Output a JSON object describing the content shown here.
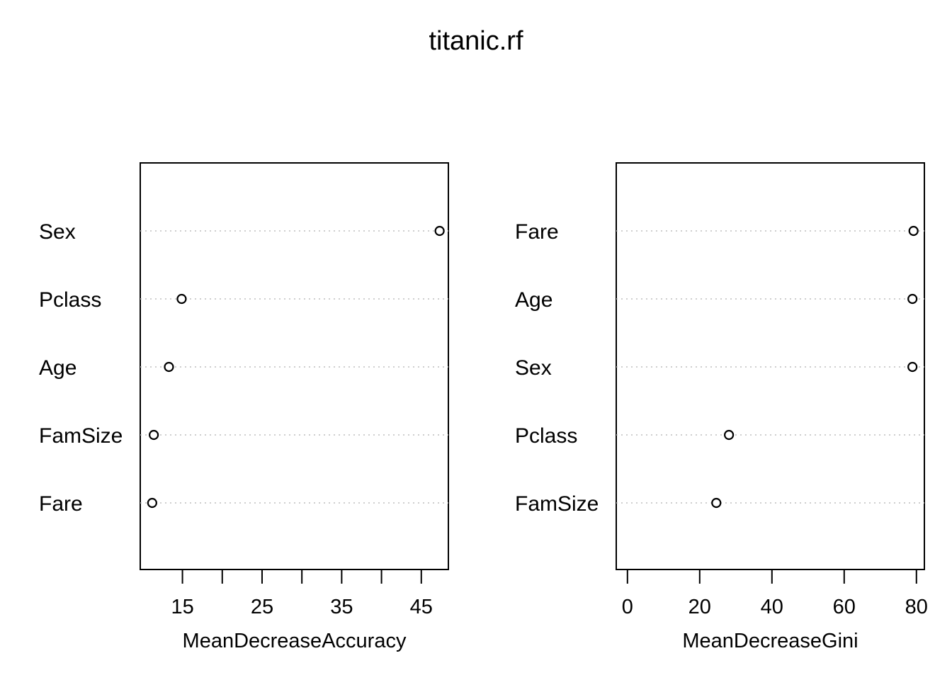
{
  "title": "titanic.rf",
  "chart_data": [
    {
      "type": "scatter",
      "variant": "dotchart",
      "xlabel": "MeanDecreaseAccuracy",
      "ylabel": "",
      "xlim": [
        9.7,
        48.4
      ],
      "xticks": [
        15,
        25,
        35,
        45
      ],
      "minor_ticks": [
        20,
        30,
        40
      ],
      "grid": "dotted horizontal guides",
      "categories": [
        "Sex",
        "Pclass",
        "Age",
        "FamSize",
        "Fare"
      ],
      "values": [
        47.3,
        14.9,
        13.3,
        11.4,
        11.2
      ]
    },
    {
      "type": "scatter",
      "variant": "dotchart",
      "xlabel": "MeanDecreaseGini",
      "ylabel": "",
      "xlim": [
        -3.1,
        82.2
      ],
      "xticks": [
        0,
        20,
        40,
        60,
        80
      ],
      "minor_ticks": [],
      "grid": "dotted horizontal guides",
      "categories": [
        "Fare",
        "Age",
        "Sex",
        "Pclass",
        "FamSize"
      ],
      "values": [
        79.2,
        78.9,
        78.9,
        28.1,
        24.6
      ]
    }
  ]
}
